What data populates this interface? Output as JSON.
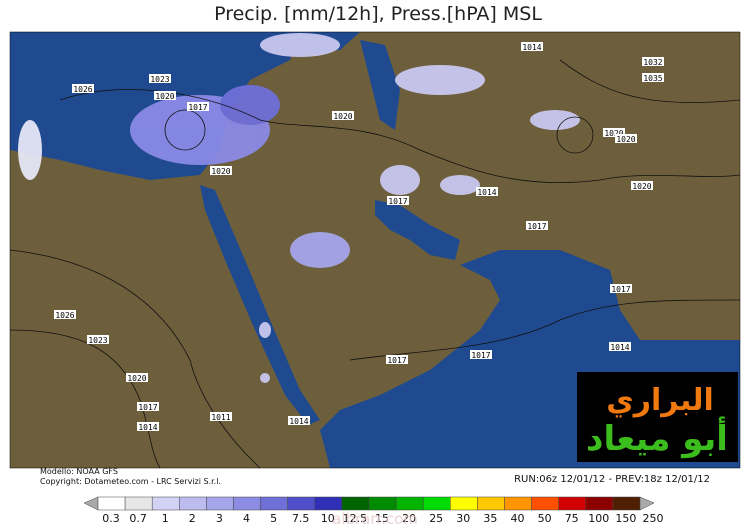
{
  "title": "Precip. [mm/12h], Press.[hPA] MSL",
  "pressure_labels": [
    "1014",
    "1032",
    "1035",
    "1023",
    "1026",
    "1020",
    "1017",
    "1020",
    "1020",
    "1020",
    "1020",
    "1014",
    "1017",
    "1020",
    "1017",
    "1017",
    "1026",
    "1023",
    "1017",
    "1017",
    "1014",
    "1020",
    "1017",
    "1014",
    "1011",
    "1014"
  ],
  "footer": {
    "model": "Modello: NOAA GFS",
    "copyright": "Copyright: Dotameteo.com - LRC Servizi S.r.l.",
    "run": "RUN:06z 12/01/12 - PREV:18z 12/01/12"
  },
  "legend": {
    "labels": [
      "0.3",
      "0.7",
      "1",
      "2",
      "3",
      "4",
      "5",
      "7.5",
      "10",
      "12.5",
      "15",
      "20",
      "25",
      "30",
      "35",
      "40",
      "50",
      "75",
      "100",
      "150",
      "250"
    ],
    "colors": [
      "#ffffff",
      "#e6e6e6",
      "#d2d2f5",
      "#bcbcf0",
      "#a5a5ea",
      "#8c8ce4",
      "#6f6fd8",
      "#4f4fcb",
      "#2f2fb8",
      "#006400",
      "#008c00",
      "#00b400",
      "#00dc00",
      "#ffff00",
      "#ffc800",
      "#ff9600",
      "#ff5000",
      "#d20000",
      "#8c0000",
      "#501e00"
    ]
  },
  "watermark": {
    "line1": "البراري",
    "line2": "أبو ميعاد",
    "site": "albrarr.com"
  }
}
